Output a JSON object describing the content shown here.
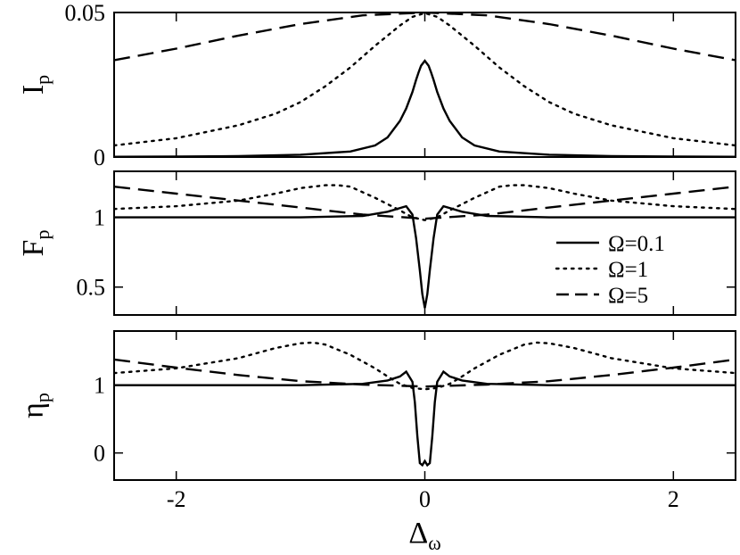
{
  "chart_data": [
    {
      "type": "line",
      "ylabel": {
        "main": "I",
        "sub": "p"
      },
      "xlim": [
        -2.5,
        2.5
      ],
      "ylim": [
        0,
        0.05
      ],
      "x_ticks": [
        -2,
        0,
        2
      ],
      "y_ticks": [
        {
          "value": 0,
          "label": "0"
        },
        {
          "value": 0.05,
          "label": "0.05"
        }
      ],
      "series": [
        {
          "name": "Ω=0.1",
          "style": "solid",
          "x": [
            -2.5,
            -2,
            -1.5,
            -1,
            -0.6,
            -0.4,
            -0.3,
            -0.2,
            -0.15,
            -0.1,
            -0.07,
            -0.05,
            -0.03,
            0,
            0.03,
            0.05,
            0.07,
            0.1,
            0.15,
            0.2,
            0.3,
            0.4,
            0.6,
            1,
            1.5,
            2,
            2.5
          ],
          "y": [
            0.0001,
            0.0002,
            0.0003,
            0.0008,
            0.0019,
            0.004,
            0.0068,
            0.0125,
            0.0168,
            0.0225,
            0.0267,
            0.0293,
            0.0316,
            0.0333,
            0.0316,
            0.0293,
            0.0267,
            0.0225,
            0.0168,
            0.0125,
            0.0068,
            0.004,
            0.0019,
            0.0008,
            0.0003,
            0.0002,
            0.0001
          ]
        },
        {
          "name": "Ω=1",
          "style": "dotted",
          "x": [
            -2.5,
            -2,
            -1.5,
            -1.2,
            -1,
            -0.8,
            -0.6,
            -0.4,
            -0.3,
            -0.2,
            -0.1,
            0,
            0.1,
            0.2,
            0.3,
            0.4,
            0.6,
            0.8,
            1,
            1.2,
            1.5,
            2,
            2.5
          ],
          "y": [
            0.004,
            0.0065,
            0.011,
            0.015,
            0.019,
            0.0245,
            0.031,
            0.0385,
            0.042,
            0.0455,
            0.0485,
            0.0498,
            0.0485,
            0.0455,
            0.042,
            0.0385,
            0.031,
            0.0245,
            0.019,
            0.015,
            0.011,
            0.0065,
            0.004
          ]
        },
        {
          "name": "Ω=5",
          "style": "dashed",
          "x": [
            -2.5,
            -2,
            -1.5,
            -1,
            -0.5,
            0,
            0.5,
            1,
            1.5,
            2,
            2.5
          ],
          "y": [
            0.0335,
            0.0375,
            0.042,
            0.046,
            0.049,
            0.05,
            0.049,
            0.046,
            0.042,
            0.0375,
            0.0335
          ]
        }
      ]
    },
    {
      "type": "line",
      "ylabel": {
        "main": "F",
        "sub": "p"
      },
      "xlim": [
        -2.5,
        2.5
      ],
      "ylim": [
        0.3,
        1.33
      ],
      "x_ticks": [
        -2,
        0,
        2
      ],
      "y_ticks": [
        {
          "value": 0.5,
          "label": "0.5"
        },
        {
          "value": 1,
          "label": "1"
        }
      ],
      "legend": {
        "position": "right",
        "entries": [
          "Ω=0.1",
          "Ω=1",
          "Ω=5"
        ]
      },
      "series": [
        {
          "name": "Ω=0.1",
          "style": "solid",
          "x": [
            -2.5,
            -1,
            -0.5,
            -0.3,
            -0.15,
            -0.1,
            -0.07,
            -0.04,
            -0.02,
            0,
            0.02,
            0.04,
            0.07,
            0.1,
            0.15,
            0.3,
            0.5,
            1,
            2.5
          ],
          "y": [
            1.0,
            1.0,
            1.01,
            1.04,
            1.08,
            1.02,
            0.85,
            0.62,
            0.45,
            0.35,
            0.45,
            0.62,
            0.85,
            1.02,
            1.08,
            1.04,
            1.01,
            1.0,
            1.0
          ]
        },
        {
          "name": "Ω=1",
          "style": "dotted",
          "x": [
            -2.5,
            -2,
            -1.5,
            -1.2,
            -1,
            -0.8,
            -0.7,
            -0.6,
            -0.4,
            -0.2,
            -0.1,
            0,
            0.1,
            0.2,
            0.4,
            0.6,
            0.7,
            0.8,
            1,
            1.2,
            1.5,
            2,
            2.5
          ],
          "y": [
            1.06,
            1.08,
            1.12,
            1.17,
            1.21,
            1.23,
            1.23,
            1.22,
            1.14,
            1.05,
            1.0,
            0.98,
            1.0,
            1.05,
            1.14,
            1.22,
            1.23,
            1.23,
            1.21,
            1.17,
            1.12,
            1.08,
            1.06
          ]
        },
        {
          "name": "Ω=5",
          "style": "dashed",
          "x": [
            -2.5,
            -2,
            -1.5,
            -1,
            -0.5,
            0,
            0.5,
            1,
            1.5,
            2,
            2.5
          ],
          "y": [
            1.22,
            1.17,
            1.12,
            1.07,
            1.02,
            0.99,
            1.02,
            1.07,
            1.12,
            1.17,
            1.22
          ]
        }
      ]
    },
    {
      "type": "line",
      "ylabel": {
        "main": "η",
        "sub": "p"
      },
      "xlabel": {
        "main": "Δ",
        "sub": "ω"
      },
      "xlim": [
        -2.5,
        2.5
      ],
      "ylim": [
        -0.4,
        1.8
      ],
      "x_ticks": [
        {
          "value": -2,
          "label": "-2"
        },
        {
          "value": 0,
          "label": "0"
        },
        {
          "value": 2,
          "label": "2"
        }
      ],
      "y_ticks": [
        {
          "value": 0,
          "label": "0"
        },
        {
          "value": 1,
          "label": "1"
        }
      ],
      "series": [
        {
          "name": "Ω=0.1",
          "style": "solid",
          "x": [
            -2.5,
            -1,
            -0.5,
            -0.3,
            -0.2,
            -0.15,
            -0.1,
            -0.08,
            -0.06,
            -0.04,
            -0.02,
            0,
            0.02,
            0.04,
            0.06,
            0.08,
            0.1,
            0.15,
            0.2,
            0.3,
            0.5,
            1,
            2.5
          ],
          "y": [
            1.0,
            1.0,
            1.02,
            1.07,
            1.13,
            1.2,
            1.05,
            0.75,
            0.25,
            -0.15,
            -0.18,
            -0.12,
            -0.18,
            -0.15,
            0.25,
            0.75,
            1.05,
            1.2,
            1.13,
            1.07,
            1.02,
            1.0,
            1.0
          ]
        },
        {
          "name": "Ω=1",
          "style": "dotted",
          "x": [
            -2.5,
            -2,
            -1.5,
            -1.2,
            -1,
            -0.9,
            -0.8,
            -0.6,
            -0.4,
            -0.3,
            -0.2,
            -0.1,
            0,
            0.1,
            0.2,
            0.3,
            0.4,
            0.6,
            0.8,
            0.9,
            1,
            1.2,
            1.5,
            2,
            2.5
          ],
          "y": [
            1.18,
            1.25,
            1.4,
            1.55,
            1.62,
            1.63,
            1.6,
            1.45,
            1.25,
            1.13,
            1.02,
            0.96,
            0.94,
            0.96,
            1.02,
            1.13,
            1.25,
            1.45,
            1.6,
            1.63,
            1.62,
            1.55,
            1.4,
            1.25,
            1.18
          ]
        },
        {
          "name": "Ω=5",
          "style": "dashed",
          "x": [
            -2.5,
            -2,
            -1.5,
            -1,
            -0.5,
            0,
            0.5,
            1,
            1.5,
            2,
            2.5
          ],
          "y": [
            1.38,
            1.26,
            1.15,
            1.06,
            1.01,
            0.98,
            1.01,
            1.06,
            1.15,
            1.26,
            1.38
          ]
        }
      ]
    }
  ]
}
